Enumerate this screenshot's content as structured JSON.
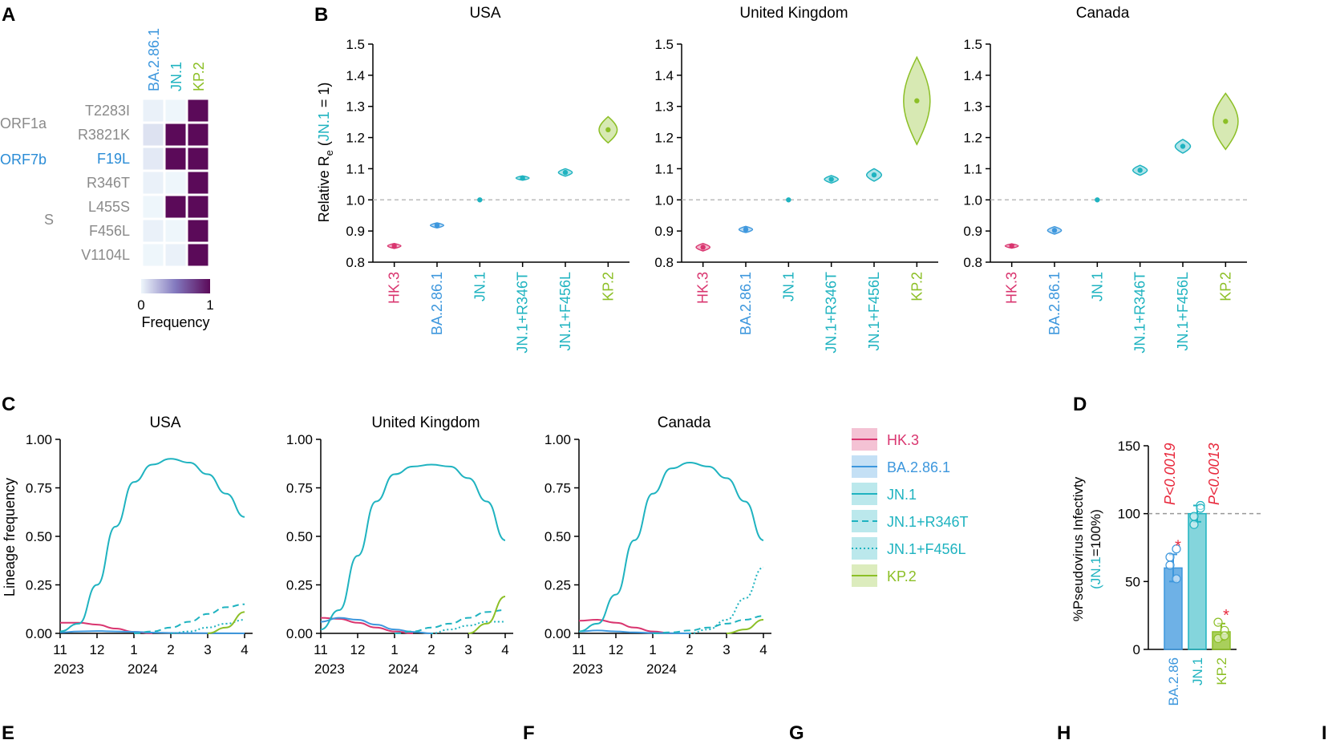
{
  "panel_letters": {
    "A": "A",
    "B": "B",
    "C": "C",
    "D": "D",
    "E": "E",
    "F": "F",
    "G": "G",
    "H": "H",
    "I": "I"
  },
  "colors": {
    "HK.3": "#d9356f",
    "BA.2.86.1": "#3d97dd",
    "JN.1": "#1fb3c0",
    "JN.1+R346T": "#1fb3c0",
    "JN.1+F456L": "#1fb3c0",
    "KP.2": "#8cbf26",
    "heat_high": "#5b0a59",
    "heat_low": "#eef6fb",
    "grey_text": "#8a8a8a",
    "orf7b": "#2a8cd6",
    "pval": "#e8283c"
  },
  "chart_data": [
    {
      "panel": "A",
      "type": "heatmap",
      "columns": [
        "BA.2.86.1",
        "JN.1",
        "KP.2"
      ],
      "rows": [
        "T2283I",
        "R3821K",
        "F19L",
        "R346T",
        "L455S",
        "F456L",
        "V1104L"
      ],
      "row_groups": [
        {
          "label": "ORF1a",
          "rows": [
            "T2283I",
            "R3821K"
          ]
        },
        {
          "label": "ORF7b",
          "rows": [
            "F19L"
          ]
        },
        {
          "label": "S",
          "rows": [
            "R346T",
            "L455S",
            "F456L",
            "V1104L"
          ]
        }
      ],
      "values": [
        [
          0.02,
          0,
          1
        ],
        [
          0.08,
          1,
          1
        ],
        [
          0.05,
          1,
          1
        ],
        [
          0.02,
          0,
          1
        ],
        [
          0,
          1,
          1
        ],
        [
          0.02,
          0,
          1
        ],
        [
          0,
          0.02,
          1
        ]
      ],
      "colorbar": {
        "min_label": "0",
        "max_label": "1",
        "label": "Frequency"
      }
    },
    {
      "panel": "B",
      "type": "violin",
      "ylabel": "Relative Re (JN.1 = 1)",
      "ylabel_parts": {
        "main": "Relative R",
        "sub": "e",
        "open": " (",
        "ref": "JN.1",
        "close": " = 1)"
      },
      "ylim": [
        0.8,
        1.5
      ],
      "yticks": [
        "0.8",
        "0.9",
        "1.0",
        "1.1",
        "1.2",
        "1.3",
        "1.4",
        "1.5"
      ],
      "categories": [
        "HK.3",
        "BA.2.86.1",
        "JN.1",
        "JN.1+R346T",
        "JN.1+F456L",
        "KP.2"
      ],
      "reference_line": 1.0,
      "facets": [
        {
          "title": "USA",
          "values": [
            0.852,
            0.918,
            1.0,
            1.07,
            1.088,
            1.225
          ],
          "spread": [
            0.008,
            0.008,
            0,
            0.007,
            0.012,
            0.042
          ]
        },
        {
          "title": "United Kingdom",
          "values": [
            0.848,
            0.905,
            1.0,
            1.066,
            1.08,
            1.318
          ],
          "spread": [
            0.012,
            0.01,
            0,
            0.012,
            0.02,
            0.14
          ]
        },
        {
          "title": "Canada",
          "values": [
            0.852,
            0.902,
            1.0,
            1.095,
            1.172,
            1.252
          ],
          "spread": [
            0.007,
            0.012,
            0,
            0.016,
            0.022,
            0.09
          ]
        }
      ]
    },
    {
      "panel": "C",
      "type": "line",
      "ylabel": "Lineage frequency",
      "ylim": [
        0,
        1
      ],
      "yticks": [
        "0.00",
        "0.25",
        "0.50",
        "0.75",
        "1.00"
      ],
      "xticks": [
        "11",
        "12",
        "1",
        "2",
        "3",
        "4"
      ],
      "xyears": [
        "2023",
        "2024"
      ],
      "legend": [
        "HK.3",
        "BA.2.86.1",
        "JN.1",
        "JN.1+R346T",
        "JN.1+F456L",
        "KP.2"
      ],
      "legend_styles": [
        "solid",
        "solid",
        "solid",
        "dashed",
        "dotted",
        "solid"
      ],
      "facets": [
        {
          "title": "USA",
          "series": [
            {
              "name": "HK.3",
              "x": [
                11,
                11.5,
                12,
                12.5,
                13,
                13.5
              ],
              "y": [
                0.055,
                0.055,
                0.045,
                0.025,
                0.008,
                0
              ]
            },
            {
              "name": "BA.2.86.1",
              "x": [
                11,
                11.5,
                12,
                12.5,
                13,
                13.5,
                14,
                15,
                16
              ],
              "y": [
                0.005,
                0.01,
                0.012,
                0.01,
                0.008,
                0.004,
                0.002,
                0.001,
                0
              ]
            },
            {
              "name": "JN.1",
              "x": [
                11,
                11.5,
                12,
                12.5,
                13,
                13.5,
                14,
                14.5,
                15,
                15.5,
                16
              ],
              "y": [
                0.01,
                0.05,
                0.25,
                0.55,
                0.78,
                0.87,
                0.9,
                0.88,
                0.82,
                0.72,
                0.6
              ]
            },
            {
              "name": "JN.1+R346T",
              "x": [
                13,
                13.5,
                14,
                14.5,
                15,
                15.5,
                16
              ],
              "y": [
                0,
                0.01,
                0.03,
                0.06,
                0.1,
                0.135,
                0.15
              ]
            },
            {
              "name": "JN.1+F456L",
              "x": [
                14,
                14.5,
                15,
                15.5,
                16
              ],
              "y": [
                0,
                0.01,
                0.03,
                0.05,
                0.07
              ]
            },
            {
              "name": "KP.2",
              "x": [
                15,
                15.5,
                16
              ],
              "y": [
                0,
                0.03,
                0.11
              ]
            }
          ]
        },
        {
          "title": "United Kingdom",
          "series": [
            {
              "name": "HK.3",
              "x": [
                11,
                11.5,
                12,
                12.5,
                13,
                13.5
              ],
              "y": [
                0.08,
                0.075,
                0.055,
                0.03,
                0.01,
                0
              ]
            },
            {
              "name": "BA.2.86.1",
              "x": [
                11,
                11.5,
                12,
                12.5,
                13,
                13.5,
                14
              ],
              "y": [
                0.06,
                0.08,
                0.07,
                0.045,
                0.02,
                0.008,
                0
              ]
            },
            {
              "name": "JN.1",
              "x": [
                11,
                11.5,
                12,
                12.5,
                13,
                13.5,
                14,
                14.5,
                15,
                15.5,
                16
              ],
              "y": [
                0.02,
                0.12,
                0.4,
                0.68,
                0.82,
                0.86,
                0.87,
                0.86,
                0.8,
                0.68,
                0.48
              ]
            },
            {
              "name": "JN.1+R346T",
              "x": [
                13,
                13.5,
                14,
                14.5,
                15,
                15.5,
                16
              ],
              "y": [
                0,
                0.01,
                0.03,
                0.05,
                0.08,
                0.11,
                0.12
              ]
            },
            {
              "name": "JN.1+F456L",
              "x": [
                14,
                14.5,
                15,
                15.5,
                16
              ],
              "y": [
                0,
                0.02,
                0.04,
                0.06,
                0.06
              ]
            },
            {
              "name": "KP.2",
              "x": [
                15,
                15.5,
                16
              ],
              "y": [
                0,
                0.05,
                0.19
              ]
            }
          ]
        },
        {
          "title": "Canada",
          "series": [
            {
              "name": "HK.3",
              "x": [
                11,
                11.5,
                12,
                12.5,
                13,
                13.5
              ],
              "y": [
                0.065,
                0.07,
                0.055,
                0.03,
                0.01,
                0
              ]
            },
            {
              "name": "BA.2.86.1",
              "x": [
                11,
                11.5,
                12,
                12.5,
                13,
                14
              ],
              "y": [
                0.01,
                0.015,
                0.01,
                0.005,
                0.002,
                0
              ]
            },
            {
              "name": "JN.1",
              "x": [
                11,
                11.5,
                12,
                12.5,
                13,
                13.5,
                14,
                14.5,
                15,
                15.5,
                16
              ],
              "y": [
                0.01,
                0.05,
                0.2,
                0.48,
                0.72,
                0.85,
                0.88,
                0.86,
                0.8,
                0.68,
                0.48
              ]
            },
            {
              "name": "JN.1+R346T",
              "x": [
                13,
                13.5,
                14,
                14.5,
                15,
                15.5,
                16
              ],
              "y": [
                0,
                0.005,
                0.015,
                0.03,
                0.05,
                0.07,
                0.09
              ]
            },
            {
              "name": "JN.1+F456L",
              "x": [
                14,
                14.5,
                15,
                15.5,
                16
              ],
              "y": [
                0,
                0.02,
                0.07,
                0.18,
                0.34
              ]
            },
            {
              "name": "KP.2",
              "x": [
                15,
                15.5,
                16
              ],
              "y": [
                0,
                0.02,
                0.07
              ]
            }
          ]
        }
      ]
    },
    {
      "panel": "D",
      "type": "bar",
      "ylabel": "%Pseudovirus Infectivity (JN.1=100%)",
      "ylabel_parts": {
        "line1": "%Pseudovirus Infectivty",
        "line2_ref": "(JN.1",
        "line2_rest": "=100%)"
      },
      "ylim": [
        0,
        150
      ],
      "yticks": [
        "0",
        "50",
        "100",
        "150"
      ],
      "categories": [
        "BA.2.86",
        "JN.1",
        "KP.2"
      ],
      "values": [
        60,
        100,
        13
      ],
      "errors": [
        10,
        6,
        6
      ],
      "points": [
        [
          68,
          52,
          62,
          74
        ],
        [
          92,
          106,
          98,
          104
        ],
        [
          8,
          14,
          20,
          10
        ]
      ],
      "significance": [
        "*",
        "",
        "*"
      ],
      "pvalues": [
        "P<0.0019",
        "P<0.0013"
      ],
      "reference_line": 100
    }
  ]
}
